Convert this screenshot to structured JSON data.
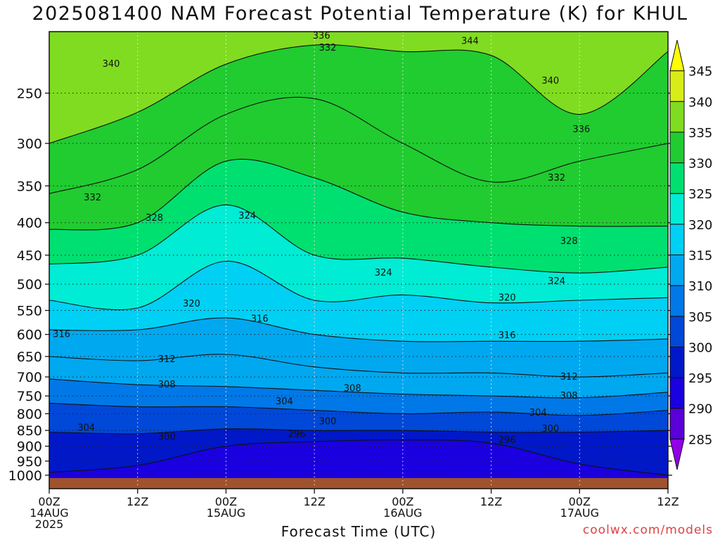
{
  "chart_data": {
    "type": "heatmap",
    "title": "2025081400 NAM Forecast Potential Temperature (K) for KHUL",
    "xlabel": "Forecast Time (UTC)",
    "ylabel": "",
    "credit": "coolwx.com/models",
    "y_axis": {
      "scale": "pressure (log), inverted",
      "ylim": [
        1050,
        200
      ],
      "ticks": [
        250,
        300,
        350,
        400,
        450,
        500,
        550,
        600,
        650,
        700,
        750,
        800,
        850,
        900,
        950,
        1000
      ]
    },
    "x_axis": {
      "xlim": [
        "2025-08-14 00Z",
        "2025-08-17 12Z"
      ],
      "ticks": [
        {
          "top": "00Z",
          "day": "14AUG",
          "year": "2025"
        },
        {
          "top": "12Z",
          "day": "",
          "year": ""
        },
        {
          "top": "00Z",
          "day": "15AUG",
          "year": ""
        },
        {
          "top": "12Z",
          "day": "",
          "year": ""
        },
        {
          "top": "00Z",
          "day": "16AUG",
          "year": ""
        },
        {
          "top": "12Z",
          "day": "",
          "year": ""
        },
        {
          "top": "00Z",
          "day": "17AUG",
          "year": ""
        },
        {
          "top": "12Z",
          "day": "",
          "year": ""
        }
      ]
    },
    "grid": true,
    "colorbar": {
      "placement": "right",
      "levels": [
        285,
        290,
        295,
        300,
        305,
        310,
        315,
        320,
        325,
        330,
        335,
        340,
        345
      ],
      "colors": [
        "#9000e8",
        "#5a00d8",
        "#1a00e0",
        "#0018c8",
        "#0048d8",
        "#0078e8",
        "#00a8f0",
        "#00d0f4",
        "#00ecd4",
        "#00e070",
        "#20cc30",
        "#80dc20",
        "#d8ec18",
        "#ffff00"
      ]
    },
    "ground_color": "#a0522d",
    "series": [
      {
        "value": 340,
        "p": [
          200,
          200,
          200,
          200,
          200,
          200,
          200,
          200
        ]
      },
      {
        "value": 336,
        "p": [
          300,
          268,
          225,
          210,
          215,
          218,
          270,
          215
        ]
      },
      {
        "value": 332,
        "p": [
          360,
          330,
          270,
          255,
          300,
          345,
          320,
          300
        ]
      },
      {
        "value": 328,
        "p": [
          410,
          400,
          320,
          340,
          385,
          400,
          405,
          405
        ]
      },
      {
        "value": 324,
        "p": [
          465,
          450,
          375,
          450,
          455,
          470,
          480,
          470
        ]
      },
      {
        "value": 320,
        "p": [
          530,
          545,
          460,
          530,
          520,
          535,
          530,
          525
        ]
      },
      {
        "value": 316,
        "p": [
          590,
          590,
          565,
          600,
          615,
          615,
          615,
          610
        ]
      },
      {
        "value": 312,
        "p": [
          650,
          660,
          645,
          675,
          690,
          690,
          700,
          690
        ]
      },
      {
        "value": 308,
        "p": [
          705,
          720,
          725,
          735,
          745,
          750,
          755,
          740
        ]
      },
      {
        "value": 304,
        "p": [
          770,
          780,
          780,
          790,
          800,
          795,
          805,
          790
        ]
      },
      {
        "value": 300,
        "p": [
          855,
          860,
          845,
          850,
          850,
          855,
          855,
          850
        ]
      },
      {
        "value": 296,
        "p": [
          990,
          965,
          900,
          885,
          880,
          890,
          960,
          1000
        ]
      }
    ],
    "contour_labels": [
      {
        "text": "340",
        "x": 0.1,
        "p": 225
      },
      {
        "text": "336",
        "x": 0.44,
        "p": 203
      },
      {
        "text": "332",
        "x": 0.45,
        "p": 212
      },
      {
        "text": "344",
        "x": 0.68,
        "p": 207
      },
      {
        "text": "340",
        "x": 0.81,
        "p": 239
      },
      {
        "text": "336",
        "x": 0.86,
        "p": 285
      },
      {
        "text": "332",
        "x": 0.07,
        "p": 365
      },
      {
        "text": "332",
        "x": 0.82,
        "p": 340
      },
      {
        "text": "328",
        "x": 0.17,
        "p": 393
      },
      {
        "text": "324",
        "x": 0.32,
        "p": 390
      },
      {
        "text": "328",
        "x": 0.84,
        "p": 428
      },
      {
        "text": "324",
        "x": 0.54,
        "p": 480
      },
      {
        "text": "324",
        "x": 0.82,
        "p": 495
      },
      {
        "text": "320",
        "x": 0.23,
        "p": 537
      },
      {
        "text": "320",
        "x": 0.74,
        "p": 525
      },
      {
        "text": "316",
        "x": 0.02,
        "p": 600
      },
      {
        "text": "316",
        "x": 0.34,
        "p": 567
      },
      {
        "text": "316",
        "x": 0.74,
        "p": 602
      },
      {
        "text": "312",
        "x": 0.19,
        "p": 657
      },
      {
        "text": "312",
        "x": 0.84,
        "p": 700
      },
      {
        "text": "308",
        "x": 0.19,
        "p": 720
      },
      {
        "text": "308",
        "x": 0.49,
        "p": 730
      },
      {
        "text": "308",
        "x": 0.84,
        "p": 750
      },
      {
        "text": "304",
        "x": 0.06,
        "p": 842
      },
      {
        "text": "304",
        "x": 0.38,
        "p": 765
      },
      {
        "text": "304",
        "x": 0.79,
        "p": 797
      },
      {
        "text": "300",
        "x": 0.19,
        "p": 870
      },
      {
        "text": "300",
        "x": 0.45,
        "p": 823
      },
      {
        "text": "300",
        "x": 0.81,
        "p": 845
      },
      {
        "text": "296",
        "x": 0.4,
        "p": 862
      },
      {
        "text": "296",
        "x": 0.74,
        "p": 880
      }
    ]
  }
}
